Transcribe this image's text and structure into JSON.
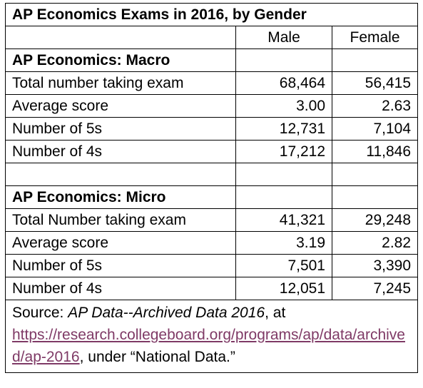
{
  "table": {
    "title": "AP Economics Exams in 2016, by Gender",
    "columns": [
      "Male",
      "Female"
    ],
    "sections": [
      {
        "name": "AP Economics: Macro",
        "rows": [
          {
            "label": "Total number taking exam",
            "male": "68,464",
            "female": "56,415"
          },
          {
            "label": "Average score",
            "male": "3.00",
            "female": "2.63"
          },
          {
            "label": "Number of 5s",
            "male": "12,731",
            "female": "7,104"
          },
          {
            "label": "Number of 4s",
            "male": "17,212",
            "female": "11,846"
          }
        ]
      },
      {
        "name": "AP Economics: Micro",
        "rows": [
          {
            "label": "Total Number taking exam",
            "male": "41,321",
            "female": "29,248"
          },
          {
            "label": "Average score",
            "male": "3.19",
            "female": "2.82"
          },
          {
            "label": "Number of 5s",
            "male": "7,501",
            "female": "3,390"
          },
          {
            "label": "Number of 4s",
            "male": "12,051",
            "female": "7,245"
          }
        ]
      }
    ],
    "source": {
      "prefix": "Source: ",
      "title": "AP Data--Archived Data 2016",
      "middle": ", at ",
      "link": "https://research.collegeboard.org/programs/ap/data/archived/ap-2016",
      "suffix": ", under “National Data.”"
    }
  }
}
